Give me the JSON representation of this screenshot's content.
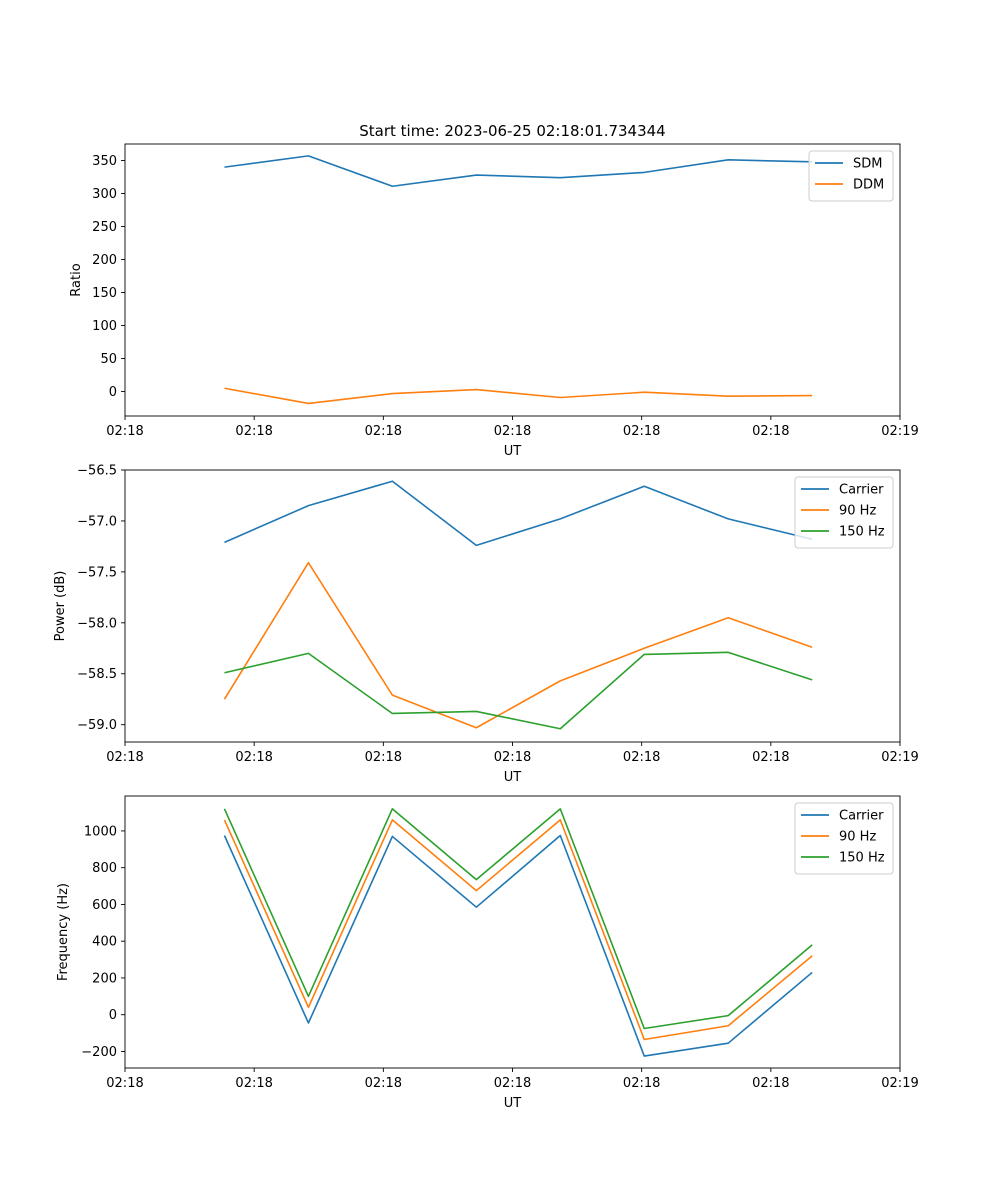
{
  "figure": {
    "title": "Start time: 2023-06-25 02:18:01.734344"
  },
  "chart_data": [
    {
      "type": "line",
      "title": "Start time: 2023-06-25 02:18:01.734344",
      "xlabel": "UT",
      "ylabel": "Ratio",
      "x": [
        0.77,
        1.42,
        2.07,
        2.72,
        3.37,
        4.02,
        4.67,
        5.32
      ],
      "xlim": [
        0,
        6
      ],
      "xticks": [
        0,
        1,
        2,
        3,
        4,
        5,
        6
      ],
      "xticklabels": [
        "02:18",
        "02:18",
        "02:18",
        "02:18",
        "02:18",
        "02:18",
        "02:19"
      ],
      "ylim": [
        -37,
        375
      ],
      "yticks": [
        0,
        50,
        100,
        150,
        200,
        250,
        300,
        350
      ],
      "yticklabels": [
        "0",
        "50",
        "100",
        "150",
        "200",
        "250",
        "300",
        "350"
      ],
      "legend_position": "top-right",
      "grid": false,
      "series": [
        {
          "name": "SDM",
          "color": "#1f77b4",
          "values": [
            340,
            357,
            311,
            328,
            324,
            332,
            351,
            348
          ]
        },
        {
          "name": "DDM",
          "color": "#ff7f0e",
          "values": [
            5,
            -18,
            -3,
            3,
            -9,
            -1,
            -7,
            -6
          ]
        }
      ]
    },
    {
      "type": "line",
      "title": "",
      "xlabel": "UT",
      "ylabel": "Power (dB)",
      "x": [
        0.77,
        1.42,
        2.07,
        2.72,
        3.37,
        4.02,
        4.67,
        5.32
      ],
      "xlim": [
        0,
        6
      ],
      "xticks": [
        0,
        1,
        2,
        3,
        4,
        5,
        6
      ],
      "xticklabels": [
        "02:18",
        "02:18",
        "02:18",
        "02:18",
        "02:18",
        "02:18",
        "02:19"
      ],
      "ylim": [
        -59.17,
        -56.5
      ],
      "yticks": [
        -59.0,
        -58.5,
        -58.0,
        -57.5,
        -57.0,
        -56.5
      ],
      "yticklabels": [
        "−59.0",
        "−58.5",
        "−58.0",
        "−57.5",
        "−57.0",
        "−56.5"
      ],
      "legend_position": "top-right",
      "grid": false,
      "series": [
        {
          "name": "Carrier",
          "color": "#1f77b4",
          "values": [
            -57.21,
            -56.85,
            -56.61,
            -57.24,
            -56.98,
            -56.66,
            -56.98,
            -57.18
          ]
        },
        {
          "name": "90 Hz",
          "color": "#ff7f0e",
          "values": [
            -58.75,
            -57.41,
            -58.71,
            -59.03,
            -58.57,
            -58.25,
            -57.95,
            -58.24
          ]
        },
        {
          "name": "150 Hz",
          "color": "#2ca02c",
          "values": [
            -58.49,
            -58.3,
            -58.89,
            -58.87,
            -59.04,
            -58.31,
            -58.29,
            -58.56
          ]
        }
      ]
    },
    {
      "type": "line",
      "title": "",
      "xlabel": "UT",
      "ylabel": "Frequency (Hz)",
      "x": [
        0.77,
        1.42,
        2.07,
        2.72,
        3.37,
        4.02,
        4.67,
        5.32
      ],
      "xlim": [
        0,
        6
      ],
      "xticks": [
        0,
        1,
        2,
        3,
        4,
        5,
        6
      ],
      "xticklabels": [
        "02:18",
        "02:18",
        "02:18",
        "02:18",
        "02:18",
        "02:18",
        "02:19"
      ],
      "ylim": [
        -290,
        1190
      ],
      "yticks": [
        -200,
        0,
        200,
        400,
        600,
        800,
        1000
      ],
      "yticklabels": [
        "−200",
        "0",
        "200",
        "400",
        "600",
        "800",
        "1000"
      ],
      "legend_position": "top-right",
      "grid": false,
      "series": [
        {
          "name": "Carrier",
          "color": "#1f77b4",
          "values": [
            975,
            -45,
            970,
            585,
            975,
            -225,
            -155,
            230
          ]
        },
        {
          "name": "90 Hz",
          "color": "#ff7f0e",
          "values": [
            1060,
            40,
            1060,
            675,
            1060,
            -135,
            -60,
            320
          ]
        },
        {
          "name": "150 Hz",
          "color": "#2ca02c",
          "values": [
            1120,
            100,
            1120,
            735,
            1120,
            -75,
            -5,
            380
          ]
        }
      ]
    }
  ]
}
